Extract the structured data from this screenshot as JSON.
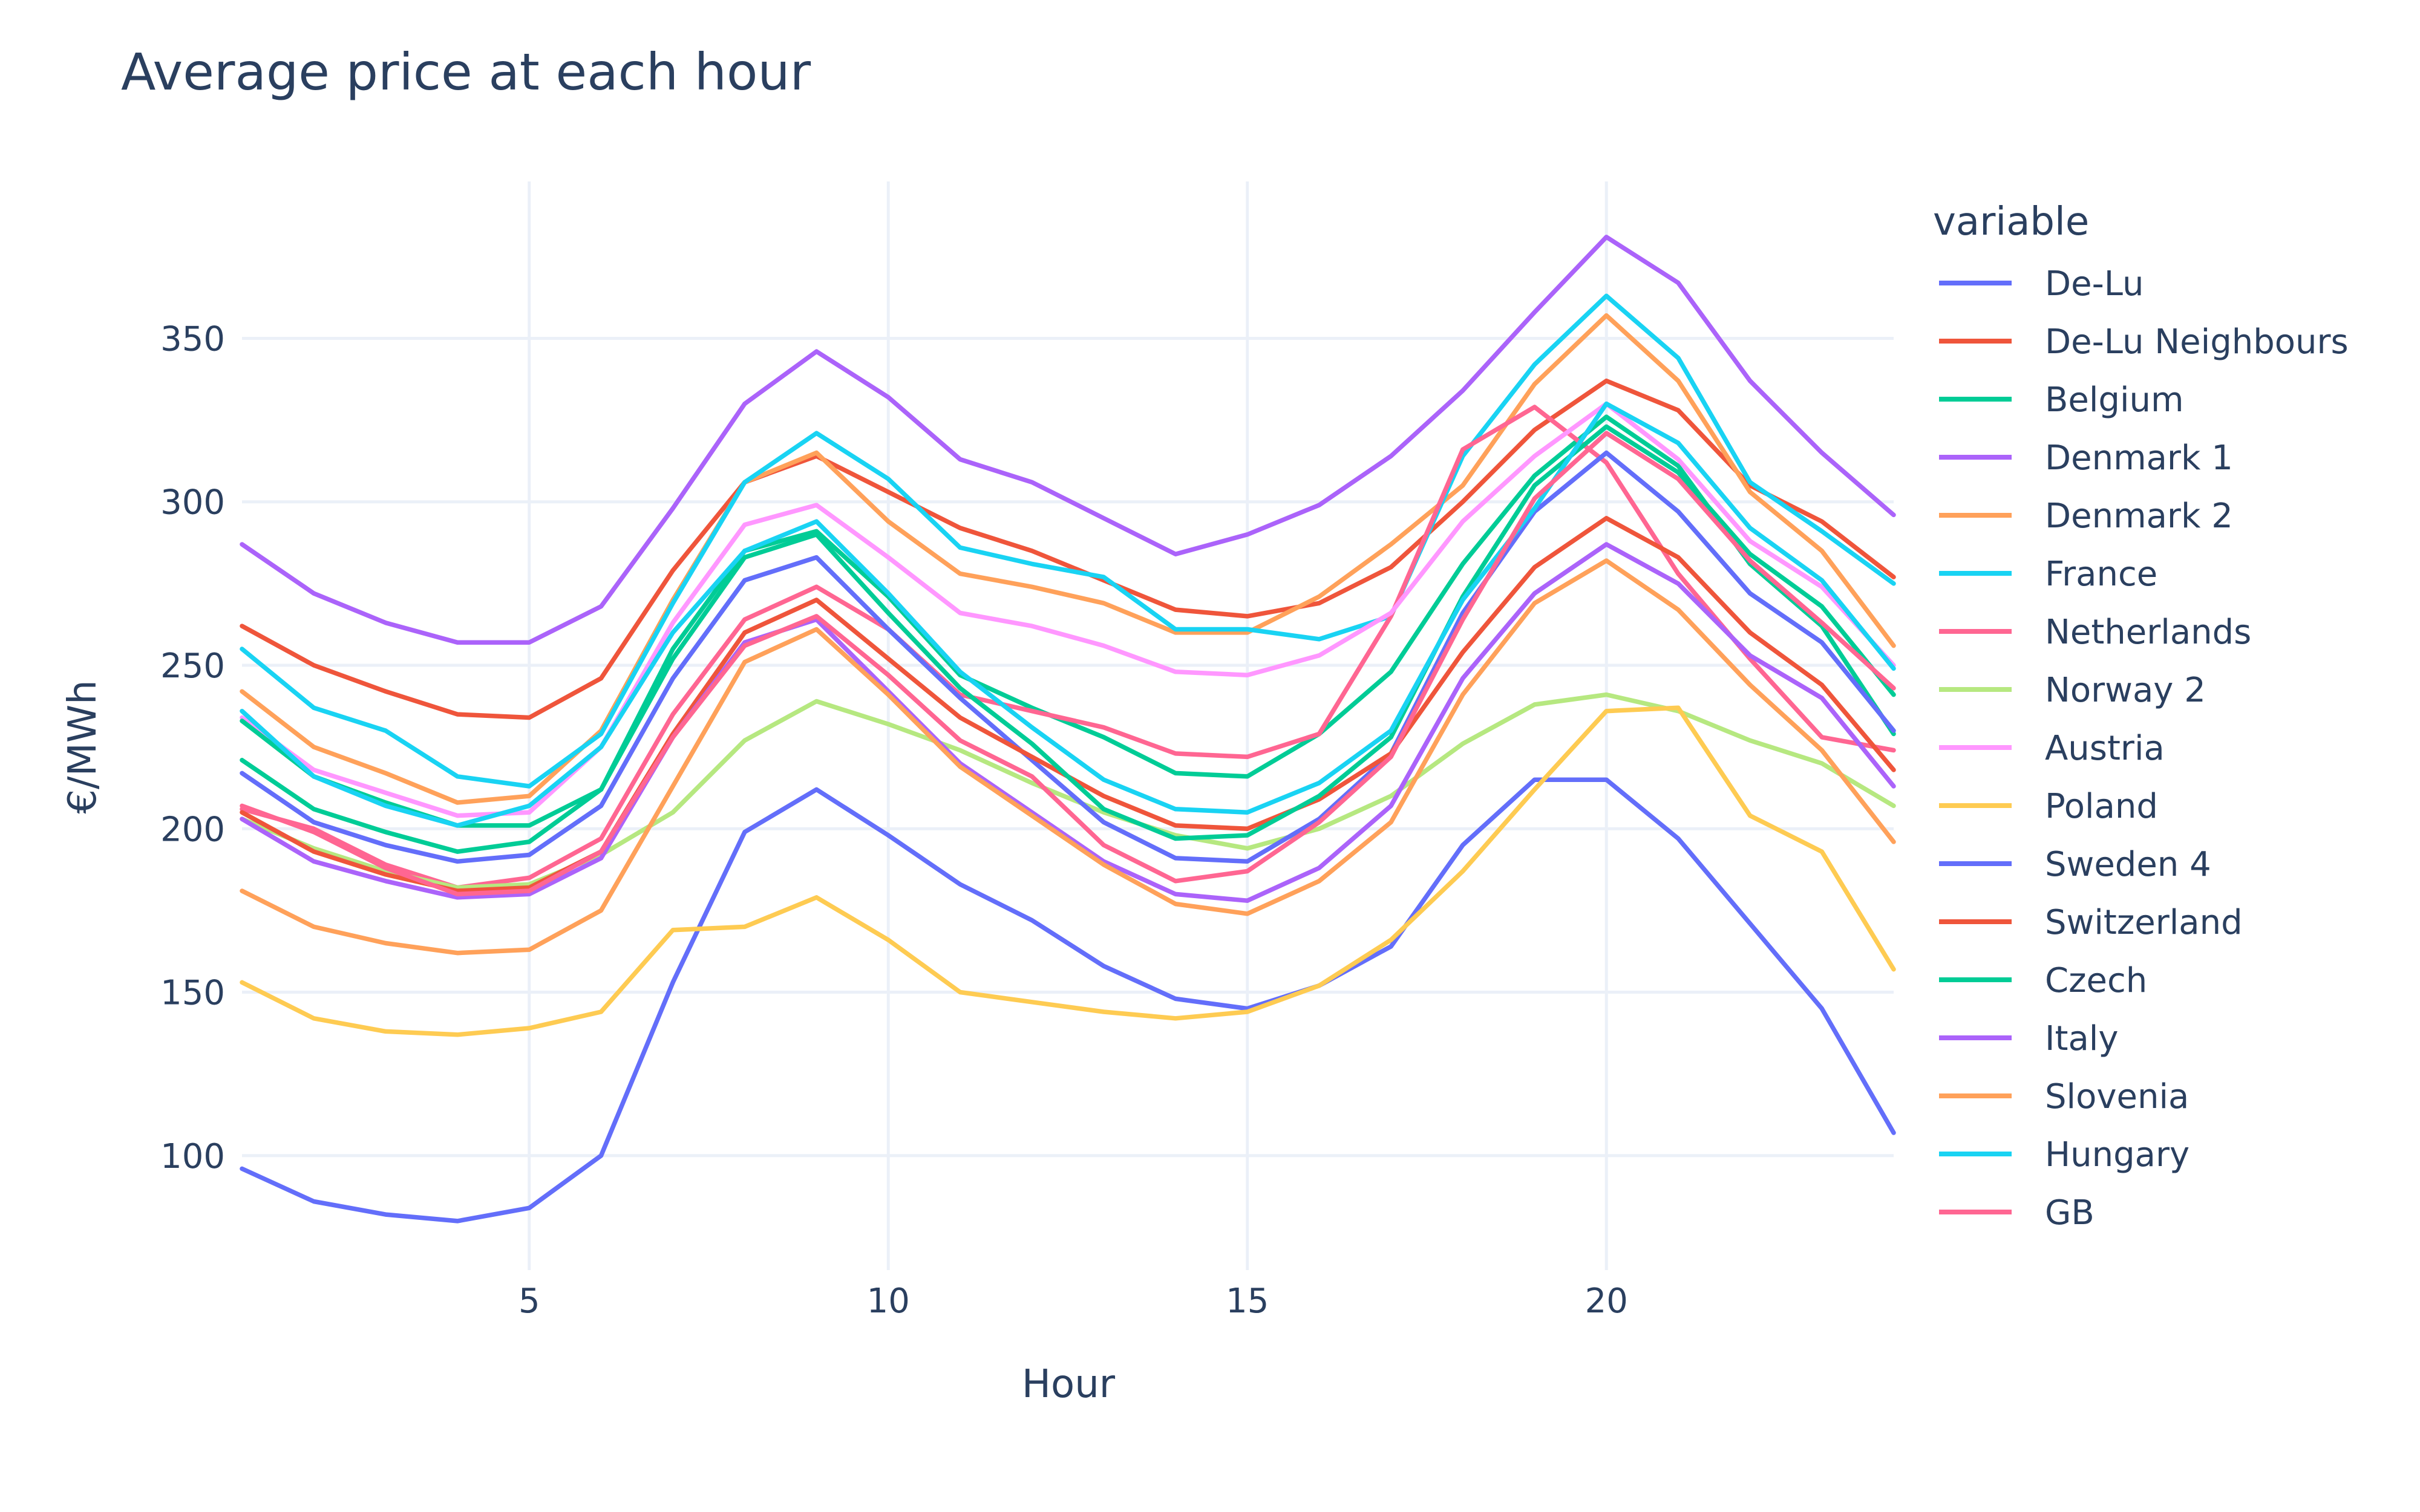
{
  "chart_data": {
    "type": "line",
    "title": "Average price at each hour",
    "xlabel": "Hour",
    "ylabel": "€/MWh",
    "xlim": [
      1,
      24
    ],
    "ylim": [
      65,
      398
    ],
    "xticks": [
      5,
      10,
      15,
      20
    ],
    "yticks": [
      100,
      150,
      200,
      250,
      300,
      350
    ],
    "grid": true,
    "legend_title": "variable",
    "legend_position": "right",
    "x": [
      1,
      2,
      3,
      4,
      5,
      6,
      7,
      8,
      9,
      10,
      11,
      12,
      13,
      14,
      15,
      16,
      17,
      18,
      19,
      20,
      21,
      22,
      23,
      24
    ],
    "series": [
      {
        "name": "De-Lu",
        "color": "#636efa",
        "values": [
          96,
          86,
          82,
          80,
          84,
          100,
          153,
          199,
          212,
          198,
          183,
          172,
          158,
          148,
          145,
          152,
          164,
          195,
          215,
          215,
          197,
          171,
          145,
          107
        ]
      },
      {
        "name": "De-Lu Neighbours",
        "color": "#ef553b",
        "values": [
          262,
          250,
          242,
          235,
          234,
          246,
          279,
          306,
          314,
          303,
          292,
          285,
          276,
          267,
          265,
          269,
          280,
          300,
          322,
          337,
          328,
          305,
          294,
          277
        ]
      },
      {
        "name": "Belgium",
        "color": "#00cc96",
        "values": [
          221,
          206,
          199,
          193,
          196,
          212,
          255,
          285,
          291,
          271,
          247,
          237,
          228,
          217,
          216,
          229,
          248,
          281,
          308,
          326,
          311,
          281,
          262,
          229
        ]
      },
      {
        "name": "Denmark 1",
        "color": "#ab63fa",
        "values": [
          287,
          272,
          263,
          257,
          257,
          268,
          298,
          330,
          346,
          332,
          313,
          306,
          295,
          284,
          290,
          299,
          314,
          334,
          358,
          381,
          367,
          337,
          315,
          296
        ]
      },
      {
        "name": "Denmark 2",
        "color": "#ffa15a",
        "values": [
          242,
          225,
          217,
          208,
          210,
          230,
          270,
          306,
          315,
          294,
          278,
          274,
          269,
          260,
          260,
          271,
          287,
          305,
          336,
          357,
          337,
          303,
          285,
          256
        ]
      },
      {
        "name": "France",
        "color": "#19d3f3",
        "values": [
          255,
          237,
          230,
          216,
          213,
          229,
          269,
          306,
          321,
          307,
          286,
          281,
          277,
          261,
          261,
          258,
          265,
          314,
          342,
          363,
          344,
          306,
          291,
          275
        ]
      },
      {
        "name": "Netherlands",
        "color": "#ff6692",
        "values": [
          206,
          200,
          189,
          182,
          185,
          197,
          235,
          264,
          274,
          261,
          241,
          236,
          231,
          223,
          222,
          229,
          265,
          316,
          329,
          312,
          278,
          252,
          228,
          224
        ]
      },
      {
        "name": "Norway 2",
        "color": "#b6e880",
        "values": [
          203,
          194,
          187,
          182,
          183,
          192,
          205,
          227,
          239,
          232,
          224,
          214,
          205,
          198,
          194,
          200,
          210,
          226,
          238,
          241,
          236,
          227,
          220,
          207
        ]
      },
      {
        "name": "Austria",
        "color": "#ff97ff",
        "values": [
          234,
          218,
          211,
          204,
          205,
          225,
          263,
          293,
          299,
          283,
          266,
          262,
          256,
          248,
          247,
          253,
          266,
          294,
          314,
          330,
          313,
          288,
          274,
          250
        ]
      },
      {
        "name": "Poland",
        "color": "#fecb52",
        "values": [
          153,
          142,
          138,
          137,
          139,
          144,
          169,
          170,
          179,
          166,
          150,
          147,
          144,
          142,
          144,
          152,
          166,
          187,
          212,
          236,
          237,
          204,
          193,
          157
        ]
      },
      {
        "name": "Sweden 4",
        "color": "#636efa",
        "values": [
          217,
          202,
          195,
          190,
          192,
          207,
          246,
          276,
          283,
          261,
          240,
          221,
          202,
          191,
          190,
          203,
          223,
          266,
          297,
          315,
          297,
          272,
          257,
          230
        ]
      },
      {
        "name": "Switzerland",
        "color": "#ef553b",
        "values": [
          205,
          193,
          186,
          181,
          182,
          193,
          229,
          260,
          270,
          252,
          234,
          222,
          210,
          201,
          200,
          209,
          223,
          254,
          280,
          295,
          283,
          260,
          244,
          218
        ]
      },
      {
        "name": "Czech",
        "color": "#00cc96",
        "values": [
          233,
          216,
          208,
          201,
          201,
          212,
          252,
          283,
          290,
          266,
          243,
          226,
          206,
          197,
          198,
          210,
          228,
          271,
          305,
          323,
          309,
          284,
          268,
          241
        ]
      },
      {
        "name": "Italy",
        "color": "#ab63fa",
        "values": [
          203,
          190,
          184,
          179,
          180,
          191,
          228,
          257,
          264,
          242,
          220,
          205,
          190,
          180,
          178,
          188,
          207,
          246,
          272,
          287,
          275,
          253,
          240,
          213
        ]
      },
      {
        "name": "Slovenia",
        "color": "#ffa15a",
        "values": [
          181,
          170,
          165,
          162,
          163,
          175,
          213,
          251,
          261,
          241,
          219,
          204,
          189,
          177,
          174,
          184,
          202,
          241,
          269,
          282,
          267,
          244,
          224,
          196
        ]
      },
      {
        "name": "Hungary",
        "color": "#19d3f3",
        "values": [
          236,
          216,
          207,
          201,
          207,
          225,
          260,
          285,
          294,
          272,
          248,
          231,
          215,
          206,
          205,
          214,
          230,
          270,
          298,
          330,
          318,
          292,
          276,
          249
        ]
      },
      {
        "name": "GB",
        "color": "#ff6692",
        "values": [
          207,
          199,
          188,
          180,
          181,
          193,
          228,
          256,
          265,
          247,
          227,
          216,
          195,
          184,
          187,
          202,
          222,
          264,
          301,
          321,
          307,
          282,
          263,
          243
        ]
      }
    ]
  }
}
